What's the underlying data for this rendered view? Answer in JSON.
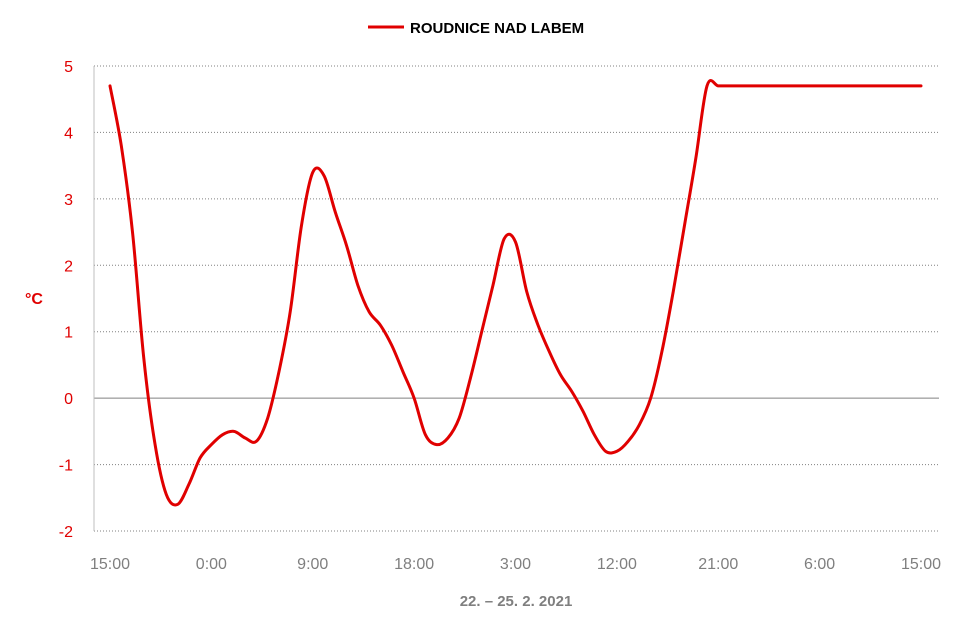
{
  "chart_data": {
    "type": "line",
    "title": "",
    "legend": {
      "position": "top-center"
    },
    "ylabel": "°C",
    "xlabel": "22. – 25. 2. 2021",
    "ylim": [
      -2,
      5
    ],
    "yticks": [
      "-2",
      "-1",
      "0",
      "1",
      "2",
      "3",
      "4",
      "5"
    ],
    "xtick_labels": [
      "15:00",
      "0:00",
      "9:00",
      "18:00",
      "3:00",
      "12:00",
      "21:00",
      "6:00",
      "15:00"
    ],
    "x_hours": [
      0,
      9,
      18,
      27,
      36,
      45,
      54,
      63,
      72
    ],
    "grid": true,
    "colors": {
      "line": "#e00000",
      "axis_text": "#e00000",
      "tick_text": "#7f7f7f",
      "grid": "#808080",
      "axis": "#bfbfbf"
    },
    "series": [
      {
        "name": "ROUDNICE NAD LABEM",
        "x": [
          0,
          1,
          2,
          3,
          4,
          5,
          6,
          7,
          8,
          9,
          10,
          11,
          12,
          13,
          14,
          15,
          16,
          17,
          18,
          19,
          20,
          21,
          22,
          23,
          24,
          25,
          26,
          27,
          28,
          29,
          30,
          31,
          32,
          33,
          34,
          35,
          36,
          37,
          38,
          39,
          40,
          41,
          42,
          43,
          44,
          45,
          46,
          47,
          48,
          49,
          50,
          51,
          52,
          53,
          54,
          55,
          56,
          57,
          58,
          59,
          60,
          61,
          62,
          63,
          64,
          65,
          66,
          67,
          68,
          69,
          70,
          71,
          72
        ],
        "values": [
          4.7,
          3.8,
          2.5,
          0.6,
          -0.7,
          -1.45,
          -1.6,
          -1.3,
          -0.9,
          -0.7,
          -0.55,
          -0.5,
          -0.6,
          -0.65,
          -0.3,
          0.4,
          1.3,
          2.6,
          3.4,
          3.35,
          2.8,
          2.3,
          1.7,
          1.3,
          1.1,
          0.8,
          0.4,
          0.0,
          -0.55,
          -0.7,
          -0.6,
          -0.3,
          0.3,
          1.0,
          1.7,
          2.4,
          2.35,
          1.6,
          1.1,
          0.7,
          0.35,
          0.1,
          -0.2,
          -0.55,
          -0.8,
          -0.8,
          -0.65,
          -0.4,
          0.0,
          0.7,
          1.6,
          2.6,
          3.6,
          4.7,
          4.7,
          4.7,
          4.7,
          4.7,
          4.7,
          4.7,
          4.7,
          4.7,
          4.7,
          4.7,
          4.7,
          4.7,
          4.7,
          4.7,
          4.7,
          4.7,
          4.7,
          4.7,
          4.7
        ]
      }
    ]
  }
}
